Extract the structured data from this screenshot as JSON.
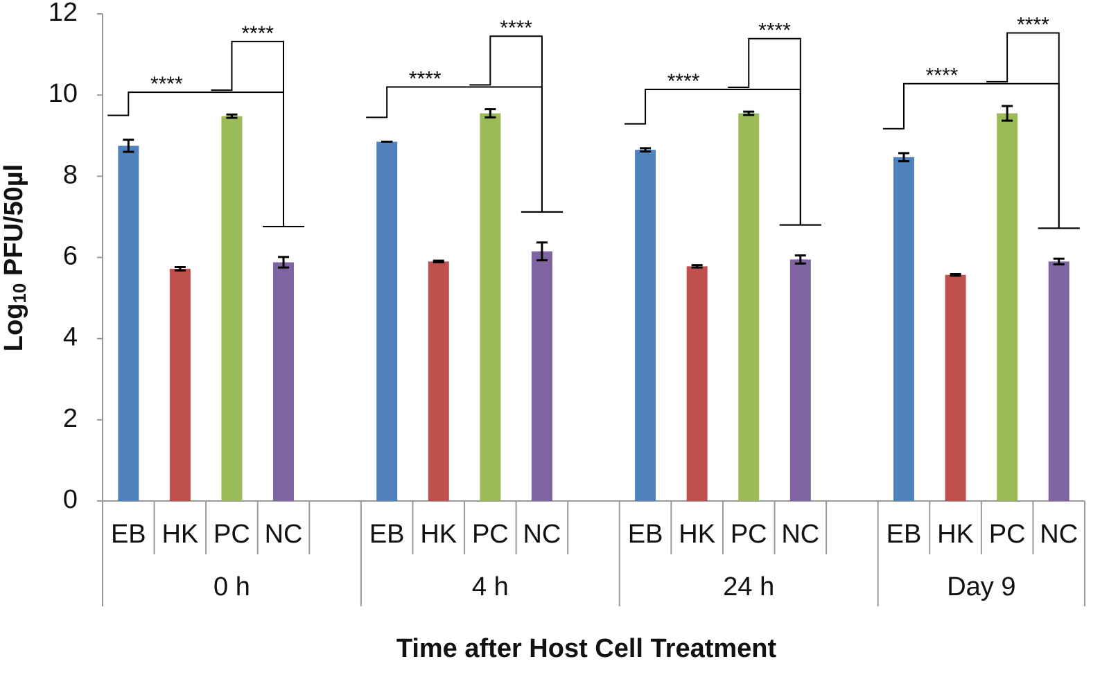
{
  "chart_data": {
    "type": "bar",
    "ylabel": {
      "base": "Log",
      "subscript": "10",
      "rest": " PFU/50µl"
    },
    "xlabel": "Time after Host Cell Treatment",
    "categories": [
      "EB",
      "HK",
      "PC",
      "NC",
      null,
      "EB",
      "HK",
      "PC",
      "NC",
      null,
      "EB",
      "HK",
      "PC",
      "NC",
      null,
      "EB",
      "HK",
      "PC",
      "NC"
    ],
    "groups": [
      "0 h",
      "4 h",
      "24 h",
      "Day 9"
    ],
    "values": [
      8.75,
      5.72,
      9.48,
      5.88,
      null,
      8.85,
      5.9,
      9.55,
      6.15,
      null,
      8.65,
      5.78,
      9.55,
      5.95,
      null,
      8.47,
      5.57,
      9.55,
      5.9
    ],
    "errors": [
      0.15,
      0.04,
      0.04,
      0.13,
      null,
      0,
      0.02,
      0.1,
      0.22,
      null,
      0.04,
      0.03,
      0.04,
      0.1,
      null,
      0.1,
      0.02,
      0.18,
      0.07
    ],
    "colors": [
      "#4f81bd",
      "#c0504d",
      "#9bbb59",
      "#8064a2",
      null,
      "#4f81bd",
      "#c0504d",
      "#9bbb59",
      "#8064a2",
      null,
      "#4f81bd",
      "#c0504d",
      "#9bbb59",
      "#8064a2",
      null,
      "#4f81bd",
      "#c0504d",
      "#9bbb59",
      "#8064a2"
    ],
    "brackets": [
      {
        "text": "****",
        "from": 0,
        "to": 3
      },
      {
        "text": "****",
        "from": 2,
        "to": 3
      },
      {
        "text": "****",
        "from": 5,
        "to": 8
      },
      {
        "text": "****",
        "from": 7,
        "to": 8
      },
      {
        "text": "****",
        "from": 10,
        "to": 13
      },
      {
        "text": "****",
        "from": 12,
        "to": 13
      },
      {
        "text": "****",
        "from": 15,
        "to": 18
      },
      {
        "text": "****",
        "from": 17,
        "to": 18
      }
    ],
    "ylim": [
      0,
      12
    ],
    "yticks": [
      0,
      2,
      4,
      6,
      8,
      10,
      12
    ]
  }
}
